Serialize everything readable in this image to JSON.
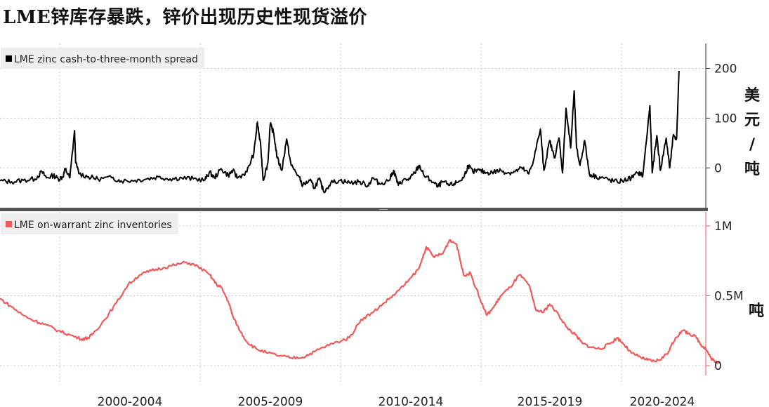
{
  "title": "LME锌库存暴跌，锌价出现历史性现货溢价",
  "colors": {
    "spread": "#000000",
    "inventory": "#f05a5a",
    "grid": "#c8c8c8",
    "divider": "#555555",
    "legend_bg": "#eeeeee"
  },
  "chart_data": [
    {
      "type": "line",
      "series": [
        {
          "name": "LME zinc cash-to-three-month spread"
        }
      ],
      "legend_label": "LME zinc cash-to-three-month spread",
      "unit_label": "美元/吨",
      "yticks": [
        {
          "value": 200,
          "label": "200"
        },
        {
          "value": 100,
          "label": "100"
        },
        {
          "value": 0,
          "label": "0"
        }
      ],
      "ylim": [
        -80,
        250
      ],
      "xlim": [
        1995.0,
        2025.3
      ],
      "grid": true,
      "legend_position": "top-left",
      "points": [
        [
          1995.0,
          -26
        ],
        [
          1995.5,
          -28
        ],
        [
          1996.0,
          -25
        ],
        [
          1996.5,
          -22
        ],
        [
          1996.8,
          -8
        ],
        [
          1997.0,
          -20
        ],
        [
          1997.3,
          -15
        ],
        [
          1997.5,
          -22
        ],
        [
          1997.7,
          -18
        ],
        [
          1997.8,
          -2
        ],
        [
          1998.0,
          -20
        ],
        [
          1998.2,
          75
        ],
        [
          1998.25,
          10
        ],
        [
          1998.4,
          -12
        ],
        [
          1998.8,
          -18
        ],
        [
          1999.2,
          -22
        ],
        [
          1999.8,
          -20
        ],
        [
          2000.2,
          -26
        ],
        [
          2000.8,
          -25
        ],
        [
          2001.3,
          -22
        ],
        [
          2001.8,
          -18
        ],
        [
          2002.3,
          -22
        ],
        [
          2002.8,
          -20
        ],
        [
          2003.3,
          -22
        ],
        [
          2003.8,
          -24
        ],
        [
          2004.0,
          -8
        ],
        [
          2004.2,
          -20
        ],
        [
          2004.5,
          -2
        ],
        [
          2004.8,
          -15
        ],
        [
          2005.0,
          -5
        ],
        [
          2005.2,
          -20
        ],
        [
          2005.6,
          -8
        ],
        [
          2005.9,
          30
        ],
        [
          2006.05,
          92
        ],
        [
          2006.2,
          40
        ],
        [
          2006.3,
          -25
        ],
        [
          2006.5,
          10
        ],
        [
          2006.6,
          88
        ],
        [
          2006.75,
          70
        ],
        [
          2006.9,
          20
        ],
        [
          2007.1,
          -5
        ],
        [
          2007.3,
          58
        ],
        [
          2007.5,
          5
        ],
        [
          2007.8,
          -15
        ],
        [
          2008.0,
          -35
        ],
        [
          2008.3,
          -25
        ],
        [
          2008.5,
          -40
        ],
        [
          2008.7,
          -22
        ],
        [
          2008.9,
          -48
        ],
        [
          2009.2,
          -30
        ],
        [
          2009.6,
          -25
        ],
        [
          2010.0,
          -30
        ],
        [
          2010.4,
          -28
        ],
        [
          2010.8,
          -35
        ],
        [
          2011.0,
          -20
        ],
        [
          2011.3,
          -32
        ],
        [
          2011.7,
          -25
        ],
        [
          2011.9,
          -5
        ],
        [
          2012.1,
          -35
        ],
        [
          2012.3,
          -25
        ],
        [
          2012.6,
          -22
        ],
        [
          2012.8,
          -10
        ],
        [
          2013.0,
          5
        ],
        [
          2013.2,
          -15
        ],
        [
          2013.5,
          -25
        ],
        [
          2013.8,
          -38
        ],
        [
          2014.0,
          -28
        ],
        [
          2014.3,
          -35
        ],
        [
          2014.6,
          -30
        ],
        [
          2014.9,
          -20
        ],
        [
          2015.1,
          5
        ],
        [
          2015.3,
          -8
        ],
        [
          2015.6,
          -5
        ],
        [
          2015.9,
          -10
        ],
        [
          2016.2,
          -8
        ],
        [
          2016.5,
          -5
        ],
        [
          2016.8,
          -10
        ],
        [
          2017.1,
          -8
        ],
        [
          2017.4,
          0
        ],
        [
          2017.7,
          -12
        ],
        [
          2017.9,
          15
        ],
        [
          2018.2,
          78
        ],
        [
          2018.35,
          -5
        ],
        [
          2018.6,
          55
        ],
        [
          2018.8,
          20
        ],
        [
          2019.0,
          60
        ],
        [
          2019.15,
          -10
        ],
        [
          2019.3,
          120
        ],
        [
          2019.5,
          40
        ],
        [
          2019.65,
          155
        ],
        [
          2019.75,
          40
        ],
        [
          2019.9,
          5
        ],
        [
          2020.1,
          55
        ],
        [
          2020.3,
          -12
        ],
        [
          2020.6,
          -18
        ],
        [
          2020.9,
          -20
        ],
        [
          2021.2,
          -25
        ],
        [
          2021.5,
          -28
        ],
        [
          2021.8,
          -25
        ],
        [
          2022.1,
          -20
        ],
        [
          2022.4,
          -10
        ],
        [
          2022.6,
          -15
        ],
        [
          2022.9,
          125
        ],
        [
          2023.0,
          -10
        ],
        [
          2023.2,
          65
        ],
        [
          2023.35,
          -5
        ],
        [
          2023.6,
          60
        ],
        [
          2023.75,
          0
        ],
        [
          2023.9,
          65
        ],
        [
          2024.05,
          60
        ],
        [
          2024.15,
          195
        ]
      ]
    },
    {
      "type": "line",
      "series": [
        {
          "name": "LME on-warrant zinc inventories"
        }
      ],
      "legend_label": "LME on-warrant zinc inventories",
      "unit_label": "吨",
      "yticks": [
        {
          "value": 1000000,
          "label": "1M"
        },
        {
          "value": 500000,
          "label": "0.5M"
        },
        {
          "value": 0,
          "label": "0"
        }
      ],
      "ylim": [
        -70000,
        1100000
      ],
      "xlim": [
        1995.0,
        2025.3
      ],
      "grid": true,
      "legend_position": "top-left",
      "points": [
        [
          1995.0,
          480000
        ],
        [
          1995.5,
          420000
        ],
        [
          1996.0,
          360000
        ],
        [
          1996.5,
          320000
        ],
        [
          1997.0,
          290000
        ],
        [
          1997.5,
          250000
        ],
        [
          1998.0,
          220000
        ],
        [
          1998.5,
          190000
        ],
        [
          1998.8,
          200000
        ],
        [
          1999.0,
          230000
        ],
        [
          1999.5,
          330000
        ],
        [
          2000.0,
          450000
        ],
        [
          2000.5,
          580000
        ],
        [
          2001.0,
          650000
        ],
        [
          2001.5,
          680000
        ],
        [
          2002.0,
          700000
        ],
        [
          2002.5,
          720000
        ],
        [
          2003.0,
          740000
        ],
        [
          2003.5,
          710000
        ],
        [
          2004.0,
          650000
        ],
        [
          2004.3,
          580000
        ],
        [
          2004.5,
          560000
        ],
        [
          2004.8,
          460000
        ],
        [
          2005.0,
          350000
        ],
        [
          2005.3,
          250000
        ],
        [
          2005.6,
          170000
        ],
        [
          2006.0,
          120000
        ],
        [
          2006.5,
          90000
        ],
        [
          2007.0,
          70000
        ],
        [
          2007.5,
          55000
        ],
        [
          2008.0,
          60000
        ],
        [
          2008.5,
          100000
        ],
        [
          2009.0,
          140000
        ],
        [
          2009.5,
          170000
        ],
        [
          2010.0,
          200000
        ],
        [
          2010.5,
          330000
        ],
        [
          2011.0,
          380000
        ],
        [
          2011.5,
          450000
        ],
        [
          2012.0,
          520000
        ],
        [
          2012.5,
          600000
        ],
        [
          2013.0,
          700000
        ],
        [
          2013.3,
          850000
        ],
        [
          2013.6,
          780000
        ],
        [
          2014.0,
          800000
        ],
        [
          2014.3,
          900000
        ],
        [
          2014.6,
          870000
        ],
        [
          2014.9,
          650000
        ],
        [
          2015.2,
          660000
        ],
        [
          2015.6,
          480000
        ],
        [
          2015.9,
          360000
        ],
        [
          2016.2,
          420000
        ],
        [
          2016.5,
          500000
        ],
        [
          2016.9,
          560000
        ],
        [
          2017.3,
          650000
        ],
        [
          2017.7,
          580000
        ],
        [
          2018.0,
          400000
        ],
        [
          2018.3,
          380000
        ],
        [
          2018.6,
          440000
        ],
        [
          2019.0,
          360000
        ],
        [
          2019.3,
          280000
        ],
        [
          2019.7,
          220000
        ],
        [
          2020.0,
          160000
        ],
        [
          2020.4,
          130000
        ],
        [
          2020.8,
          120000
        ],
        [
          2021.2,
          160000
        ],
        [
          2021.5,
          200000
        ],
        [
          2021.8,
          150000
        ],
        [
          2022.1,
          90000
        ],
        [
          2022.5,
          60000
        ],
        [
          2022.8,
          40000
        ],
        [
          2023.1,
          30000
        ],
        [
          2023.4,
          50000
        ],
        [
          2023.7,
          100000
        ],
        [
          2024.0,
          200000
        ],
        [
          2024.3,
          250000
        ],
        [
          2024.6,
          230000
        ],
        [
          2024.9,
          200000
        ],
        [
          2025.1,
          150000
        ],
        [
          2025.3,
          120000
        ],
        [
          2025.5,
          60000
        ],
        [
          2025.7,
          25000
        ],
        [
          2025.9,
          30000
        ]
      ]
    }
  ],
  "x_axis": {
    "labels": [
      "2000-2004",
      "2005-2009",
      "2010-2014",
      "2015-2019",
      "2020-2024"
    ]
  }
}
